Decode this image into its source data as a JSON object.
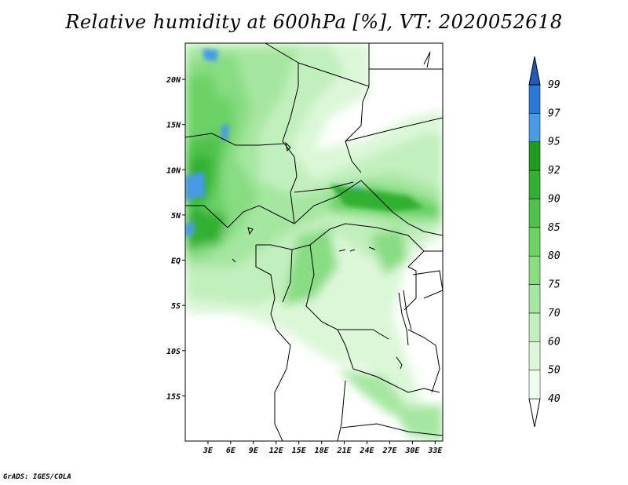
{
  "title": "Relative humidity at 600hPa [%], VT: 2020052618",
  "credit": "GrADS: IGES/COLA",
  "map": {
    "region": "Central Africa",
    "lon_range": [
      0,
      34
    ],
    "lat_range": [
      -20,
      24
    ],
    "lat_ticks": [
      {
        "value": 20,
        "label": "20N"
      },
      {
        "value": 15,
        "label": "15N"
      },
      {
        "value": 10,
        "label": "10N"
      },
      {
        "value": 5,
        "label": "5N"
      },
      {
        "value": 0,
        "label": "EQ"
      },
      {
        "value": -5,
        "label": "5S"
      },
      {
        "value": -10,
        "label": "10S"
      },
      {
        "value": -15,
        "label": "15S"
      }
    ],
    "lon_ticks": [
      {
        "value": 3,
        "label": "3E"
      },
      {
        "value": 6,
        "label": "6E"
      },
      {
        "value": 9,
        "label": "9E"
      },
      {
        "value": 12,
        "label": "12E"
      },
      {
        "value": 15,
        "label": "15E"
      },
      {
        "value": 18,
        "label": "18E"
      },
      {
        "value": 21,
        "label": "21E"
      },
      {
        "value": 24,
        "label": "24E"
      },
      {
        "value": 27,
        "label": "27E"
      },
      {
        "value": 30,
        "label": "30E"
      },
      {
        "value": 33,
        "label": "33E"
      }
    ]
  },
  "colorbar": {
    "levels": [
      {
        "label": "40",
        "color": "#f0fef0"
      },
      {
        "label": "50",
        "color": "#dcf7d8"
      },
      {
        "label": "60",
        "color": "#c2efbe"
      },
      {
        "label": "70",
        "color": "#a5e6a0"
      },
      {
        "label": "75",
        "color": "#88dc82"
      },
      {
        "label": "80",
        "color": "#6cd266"
      },
      {
        "label": "85",
        "color": "#4fc24b"
      },
      {
        "label": "90",
        "color": "#33b033"
      },
      {
        "label": "92",
        "color": "#1c9c1f"
      },
      {
        "label": "95",
        "color": "#4a9ae6"
      },
      {
        "label": "97",
        "color": "#2a78d8"
      },
      {
        "label": "99",
        "color": "#1f5bb8"
      }
    ],
    "under_color": "#ffffff",
    "over_color": "#1f5bb8"
  }
}
